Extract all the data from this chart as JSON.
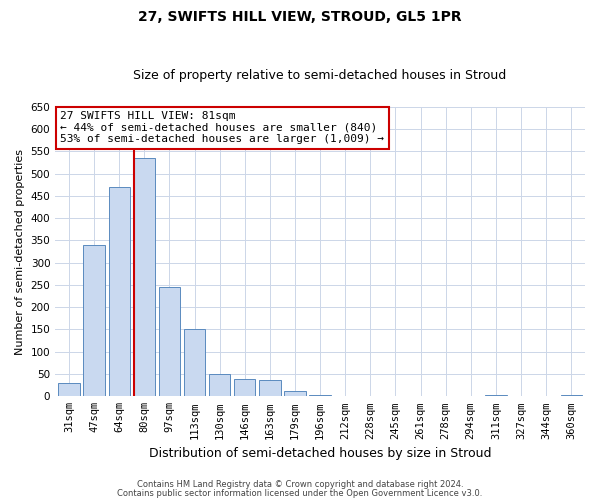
{
  "title": "27, SWIFTS HILL VIEW, STROUD, GL5 1PR",
  "subtitle": "Size of property relative to semi-detached houses in Stroud",
  "xlabel": "Distribution of semi-detached houses by size in Stroud",
  "ylabel": "Number of semi-detached properties",
  "bar_labels": [
    "31sqm",
    "47sqm",
    "64sqm",
    "80sqm",
    "97sqm",
    "113sqm",
    "130sqm",
    "146sqm",
    "163sqm",
    "179sqm",
    "196sqm",
    "212sqm",
    "228sqm",
    "245sqm",
    "261sqm",
    "278sqm",
    "294sqm",
    "311sqm",
    "327sqm",
    "344sqm",
    "360sqm"
  ],
  "bar_values": [
    30,
    340,
    470,
    535,
    245,
    150,
    50,
    39,
    37,
    12,
    2,
    1,
    1,
    0,
    0,
    0,
    0,
    2,
    0,
    0,
    2
  ],
  "bar_color": "#c9d9f0",
  "bar_edge_color": "#5a8abf",
  "highlight_line_index": 3,
  "highlight_line_color": "#cc0000",
  "ylim": [
    0,
    650
  ],
  "yticks": [
    0,
    50,
    100,
    150,
    200,
    250,
    300,
    350,
    400,
    450,
    500,
    550,
    600,
    650
  ],
  "annotation_title": "27 SWIFTS HILL VIEW: 81sqm",
  "annotation_line1": "← 44% of semi-detached houses are smaller (840)",
  "annotation_line2": "53% of semi-detached houses are larger (1,009) →",
  "annotation_box_color": "#ffffff",
  "annotation_box_edge": "#cc0000",
  "footer1": "Contains HM Land Registry data © Crown copyright and database right 2024.",
  "footer2": "Contains public sector information licensed under the Open Government Licence v3.0.",
  "bg_color": "#ffffff",
  "grid_color": "#ccd6e8",
  "title_fontsize": 10,
  "subtitle_fontsize": 9,
  "annot_fontsize": 8,
  "ylabel_fontsize": 8,
  "xlabel_fontsize": 9,
  "tick_fontsize": 7.5,
  "footer_fontsize": 6
}
